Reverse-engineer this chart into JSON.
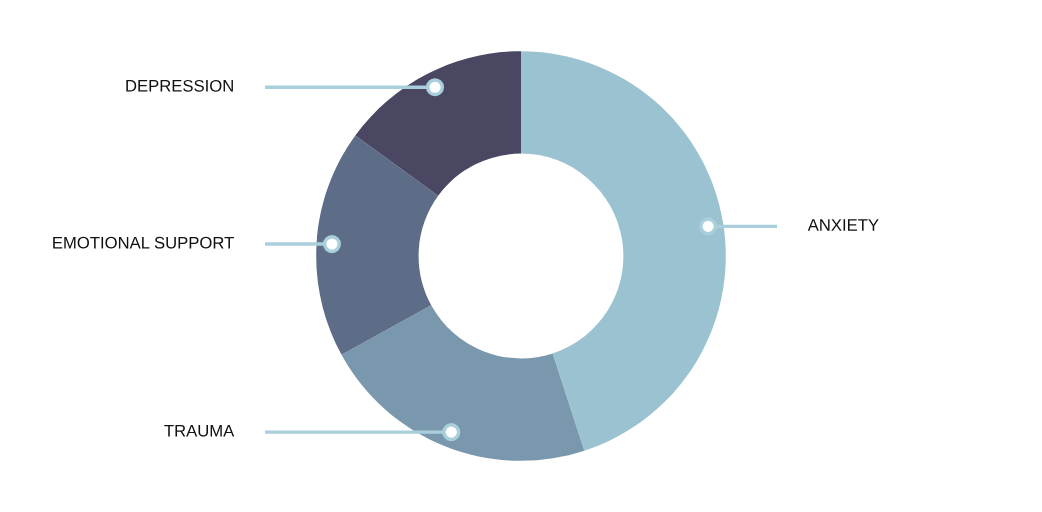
{
  "chart_data": {
    "type": "donut",
    "categories": [
      "ANXIETY",
      "TRAUMA",
      "EMOTIONAL SUPPORT",
      "DEPRESSION"
    ],
    "values": [
      45,
      22,
      18,
      15
    ],
    "colors": [
      "#9bc2d1",
      "#7a98ad",
      "#5e6d87",
      "#4a4763"
    ],
    "legend": false
  }
}
